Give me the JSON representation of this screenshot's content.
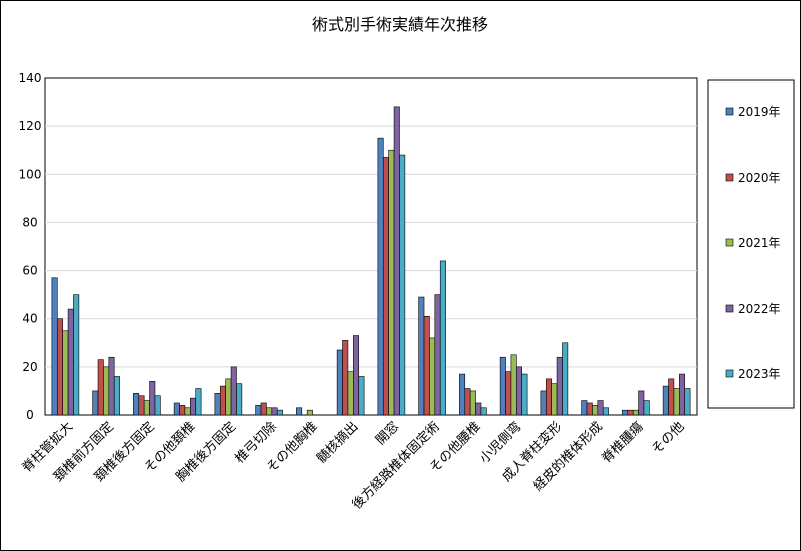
{
  "chart_data": {
    "type": "bar",
    "title": "術式別手術実績年次推移",
    "xlabel": "",
    "ylabel": "",
    "ylim": [
      0,
      140
    ],
    "yticks": [
      0,
      20,
      40,
      60,
      80,
      100,
      120,
      140
    ],
    "grid": true,
    "legend_position": "right",
    "categories": [
      "脊柱管拡大",
      "頚椎前方固定",
      "頚椎後方固定",
      "その他頚椎",
      "胸椎後方固定",
      "椎弓切除",
      "その他胸椎",
      "髄核摘出",
      "開窓",
      "後方経路椎体固定術",
      "その他腰椎",
      "小児側弯",
      "成人脊柱変形",
      "経皮的椎体形成",
      "脊椎腫瘍",
      "その他"
    ],
    "series": [
      {
        "name": "2019年",
        "color": "#4f81bd",
        "values": [
          57,
          10,
          9,
          5,
          9,
          4,
          3,
          27,
          115,
          49,
          17,
          24,
          10,
          6,
          2,
          12
        ]
      },
      {
        "name": "2020年",
        "color": "#c0504d",
        "values": [
          40,
          23,
          8,
          4,
          12,
          5,
          0,
          31,
          107,
          41,
          11,
          18,
          15,
          5,
          2,
          15
        ]
      },
      {
        "name": "2021年",
        "color": "#9bbb59",
        "values": [
          35,
          20,
          6,
          3,
          15,
          3,
          2,
          18,
          110,
          32,
          10,
          25,
          13,
          4,
          2,
          11
        ]
      },
      {
        "name": "2022年",
        "color": "#8064a2",
        "values": [
          44,
          24,
          14,
          7,
          20,
          3,
          0,
          33,
          128,
          50,
          5,
          20,
          24,
          6,
          10,
          17
        ]
      },
      {
        "name": "2023年",
        "color": "#4bacc6",
        "values": [
          50,
          16,
          8,
          11,
          13,
          2,
          0,
          16,
          108,
          64,
          3,
          17,
          30,
          3,
          6,
          11
        ]
      }
    ]
  }
}
